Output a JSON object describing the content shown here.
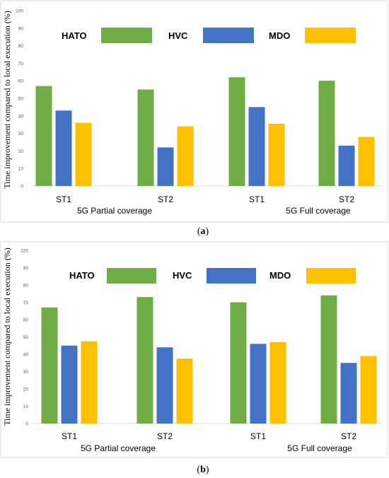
{
  "chart_data": [
    {
      "type": "bar",
      "panel_label": "(a)",
      "ylabel": "Time improvement compared to local execution (%)",
      "ylim": [
        0,
        100
      ],
      "yticks": [
        0,
        10,
        20,
        30,
        40,
        50,
        60,
        70,
        80,
        90,
        100
      ],
      "grid": false,
      "legend_position": "top",
      "categories": [
        "ST1",
        "ST2",
        "ST1",
        "ST2"
      ],
      "groups": [
        {
          "label": "5G Partial coverage",
          "categories": [
            0,
            1
          ]
        },
        {
          "label": "5G Full coverage",
          "categories": [
            2,
            3
          ]
        }
      ],
      "series": [
        {
          "name": "HATO",
          "color": "#70ad47",
          "values": [
            57,
            55,
            62,
            60
          ]
        },
        {
          "name": "HVC",
          "color": "#4472c4",
          "values": [
            43,
            22,
            45,
            23
          ]
        },
        {
          "name": "MDO",
          "color": "#ffc000",
          "values": [
            36,
            34,
            35.5,
            28
          ]
        }
      ]
    },
    {
      "type": "bar",
      "panel_label": "(b)",
      "ylabel": "Time improvement compared to local execution (%)",
      "ylim": [
        0,
        100
      ],
      "yticks": [
        0,
        10,
        20,
        30,
        40,
        50,
        60,
        70,
        80,
        90,
        100
      ],
      "grid": false,
      "legend_position": "top",
      "categories": [
        "ST1",
        "ST2",
        "ST1",
        "ST2"
      ],
      "groups": [
        {
          "label": "5G Partial coverage",
          "categories": [
            0,
            1
          ]
        },
        {
          "label": "5G Full coverage",
          "categories": [
            2,
            3
          ]
        }
      ],
      "series": [
        {
          "name": "HATO",
          "color": "#70ad47",
          "values": [
            67,
            73,
            70,
            74
          ]
        },
        {
          "name": "HVC",
          "color": "#4472c4",
          "values": [
            45,
            44,
            46,
            35
          ]
        },
        {
          "name": "MDO",
          "color": "#ffc000",
          "values": [
            47.5,
            37.5,
            47,
            39
          ]
        }
      ]
    }
  ]
}
